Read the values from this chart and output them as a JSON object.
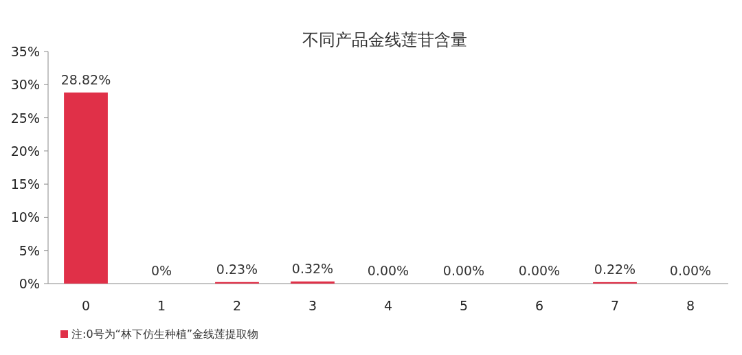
{
  "chart_data": {
    "type": "bar",
    "title": "不同产品金线莲苷含量",
    "categories": [
      "0",
      "1",
      "2",
      "3",
      "4",
      "5",
      "6",
      "7",
      "8"
    ],
    "series": [
      {
        "name": "注:0号为“林下仿生种植”金线莲提取物",
        "color": "#e03048",
        "values": [
          28.82,
          0,
          0.23,
          0.32,
          0,
          0,
          0,
          0.22,
          0
        ],
        "value_labels": [
          "28.82%",
          "0%",
          "0.23%",
          "0.32%",
          "0.00%",
          "0.00%",
          "0.00%",
          "0.22%",
          "0.00%"
        ]
      }
    ],
    "ylim": [
      0,
      35
    ],
    "yticks": [
      {
        "value": 0,
        "label": "0%"
      },
      {
        "value": 5,
        "label": "5%"
      },
      {
        "value": 10,
        "label": "10%"
      },
      {
        "value": 15,
        "label": "15%"
      },
      {
        "value": 20,
        "label": "20%"
      },
      {
        "value": 25,
        "label": "25%"
      },
      {
        "value": 30,
        "label": "30%"
      },
      {
        "value": 35,
        "label": "35%"
      }
    ],
    "grid": false,
    "legend": "bottom left"
  }
}
